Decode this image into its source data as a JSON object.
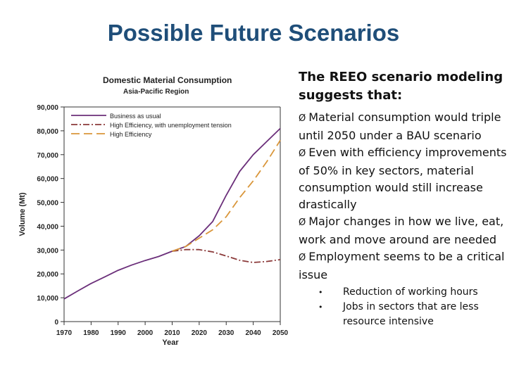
{
  "slide": {
    "title": "Possible Future Scenarios",
    "intro": "The REEO scenario modeling suggests that:",
    "arrow_glyph": "Ø",
    "points": [
      "Material consumption would triple until 2050 under a BAU scenario",
      "Even with efficiency improvements of 50% in key sectors, material consumption would still increase drastically",
      "Major changes in how we live, eat, work and move around are needed",
      "Employment seems to be a critical issue"
    ],
    "sub_points": [
      "Reduction of working hours",
      "Jobs in sectors that are less resource intensive"
    ],
    "bullet_glyph": "•"
  },
  "chart_data": {
    "type": "line",
    "title": "Domestic Material Consumption",
    "subtitle": "Asia-Pacific Region",
    "xlabel": "Year",
    "ylabel": "Volume (Mt)",
    "xlim": [
      1970,
      2050
    ],
    "ylim": [
      0,
      90000
    ],
    "x_ticks": [
      1970,
      1980,
      1990,
      2000,
      2010,
      2020,
      2030,
      2040,
      2050
    ],
    "y_ticks": [
      0,
      10000,
      20000,
      30000,
      40000,
      50000,
      60000,
      70000,
      80000,
      90000
    ],
    "x_tick_labels": [
      "1970",
      "1980",
      "1990",
      "2000",
      "2010",
      "2020",
      "2030",
      "2040",
      "2050"
    ],
    "y_tick_labels": [
      "0",
      "10,000",
      "20,000",
      "30,000",
      "40,000",
      "50,000",
      "60,000",
      "70,000",
      "80,000",
      "90,000"
    ],
    "grid": false,
    "legend_position": "top-left",
    "series": [
      {
        "name": "Business as usual",
        "color": "#6b2f7a",
        "dash": "solid",
        "x": [
          1970,
          1975,
          1980,
          1985,
          1990,
          1995,
          2000,
          2005,
          2010,
          2015,
          2020,
          2025,
          2030,
          2035,
          2040,
          2045,
          2050
        ],
        "y": [
          9500,
          12800,
          16000,
          18700,
          21500,
          23700,
          25600,
          27300,
          29500,
          31500,
          36000,
          42000,
          53000,
          63000,
          70000,
          75500,
          81000
        ]
      },
      {
        "name": "High Efficiency, with unemployment tension",
        "color": "#8b3a3a",
        "dash": "dashdot",
        "x": [
          2010,
          2015,
          2020,
          2025,
          2030,
          2035,
          2040,
          2045,
          2050
        ],
        "y": [
          29500,
          30200,
          30200,
          29200,
          27500,
          25700,
          24800,
          25200,
          26000
        ]
      },
      {
        "name": "High Efficiency",
        "color": "#d9963a",
        "dash": "dashed",
        "x": [
          2010,
          2015,
          2020,
          2025,
          2030,
          2035,
          2040,
          2045,
          2050
        ],
        "y": [
          29500,
          31500,
          35000,
          38500,
          44000,
          52000,
          59000,
          67000,
          76000
        ]
      }
    ]
  }
}
